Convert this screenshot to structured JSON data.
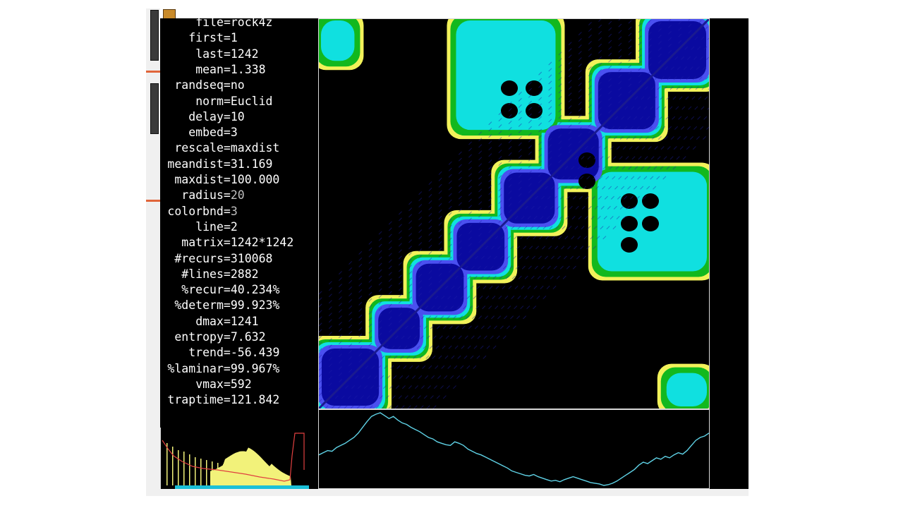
{
  "window": {
    "title": "",
    "colors": {
      "background": "#000000",
      "text": "#ffffff",
      "frame": "#d8d8d8"
    }
  },
  "stats": [
    {
      "key": "file",
      "value": "rock4z"
    },
    {
      "key": "first",
      "value": "1"
    },
    {
      "key": "last",
      "value": "1242"
    },
    {
      "key": "mean",
      "value": "1.338"
    },
    {
      "key": "randseq",
      "value": "no"
    },
    {
      "key": "norm",
      "value": "Euclid"
    },
    {
      "key": "delay",
      "value": "10"
    },
    {
      "key": "embed",
      "value": "3"
    },
    {
      "key": "rescale",
      "value": "maxdist"
    },
    {
      "key": "meandist",
      "value": "31.169"
    },
    {
      "key": "maxdist",
      "value": "100.000"
    },
    {
      "key": "radius",
      "value": "20"
    },
    {
      "key": "colorbnd",
      "value": "3"
    },
    {
      "key": "line",
      "value": "2"
    },
    {
      "key": "matrix",
      "value": "1242*1242"
    },
    {
      "key": "#recurs",
      "value": "310068"
    },
    {
      "key": "#lines",
      "value": "2882"
    },
    {
      "key": "%recur",
      "value": "40.234%"
    },
    {
      "key": "%determ",
      "value": "99.923%"
    },
    {
      "key": "dmax",
      "value": "1241"
    },
    {
      "key": "entropy",
      "value": "7.632"
    },
    {
      "key": "trend",
      "value": "-56.439"
    },
    {
      "key": "%laminar",
      "value": "99.967%"
    },
    {
      "key": "vmax",
      "value": "592"
    },
    {
      "key": "traptime",
      "value": "121.842"
    }
  ],
  "recurrence_plot": {
    "color_bands": [
      "#0a0aa0",
      "#4a50f0",
      "#10e0e0",
      "#12b81e",
      "#f2f25a"
    ],
    "size": 1242
  },
  "time_series": {
    "color": "#5fd2e6",
    "values": [
      0.42,
      0.45,
      0.48,
      0.47,
      0.52,
      0.55,
      0.58,
      0.62,
      0.66,
      0.72,
      0.8,
      0.88,
      0.95,
      0.98,
      1.0,
      0.96,
      0.92,
      0.95,
      0.9,
      0.86,
      0.84,
      0.8,
      0.77,
      0.74,
      0.7,
      0.66,
      0.64,
      0.6,
      0.58,
      0.56,
      0.55,
      0.6,
      0.58,
      0.55,
      0.5,
      0.47,
      0.44,
      0.42,
      0.39,
      0.36,
      0.33,
      0.3,
      0.27,
      0.24,
      0.2,
      0.18,
      0.16,
      0.14,
      0.13,
      0.15,
      0.12,
      0.1,
      0.08,
      0.06,
      0.07,
      0.05,
      0.08,
      0.1,
      0.12,
      0.1,
      0.08,
      0.06,
      0.04,
      0.03,
      0.02,
      0.0,
      0.01,
      0.03,
      0.06,
      0.1,
      0.14,
      0.18,
      0.22,
      0.28,
      0.32,
      0.3,
      0.34,
      0.38,
      0.36,
      0.4,
      0.38,
      0.42,
      0.45,
      0.43,
      0.48,
      0.55,
      0.62,
      0.66,
      0.68,
      0.72
    ]
  },
  "histogram": {
    "bar_color": "#f2f27a",
    "line_color": "#e04040",
    "base_color": "#1ac0d8"
  }
}
